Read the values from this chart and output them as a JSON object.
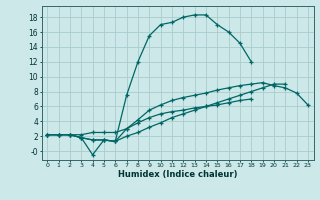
{
  "title": "",
  "xlabel": "Humidex (Indice chaleur)",
  "bg_color": "#cce8e8",
  "grid_color": "#aacccc",
  "line_color": "#006666",
  "xlim": [
    -0.5,
    23.5
  ],
  "ylim": [
    -1.2,
    19.5
  ],
  "xticks": [
    0,
    1,
    2,
    3,
    4,
    5,
    6,
    7,
    8,
    9,
    10,
    11,
    12,
    13,
    14,
    15,
    16,
    17,
    18,
    19,
    20,
    21,
    22,
    23
  ],
  "ytick_vals": [
    0,
    2,
    4,
    6,
    8,
    10,
    12,
    14,
    16,
    18
  ],
  "ytick_labels": [
    "-0",
    "2",
    "4",
    "6",
    "8",
    "10",
    "12",
    "14",
    "16",
    "18"
  ],
  "line1_x": [
    0,
    1,
    2,
    3,
    4,
    5,
    6,
    7,
    8,
    9,
    10,
    11,
    12,
    13,
    14,
    15,
    16,
    17,
    18
  ],
  "line1_y": [
    2.2,
    2.2,
    2.2,
    1.8,
    -0.5,
    1.5,
    1.3,
    7.5,
    12.0,
    15.5,
    17.0,
    17.3,
    18.0,
    18.3,
    18.3,
    17.0,
    16.0,
    14.5,
    12.0
  ],
  "line2_x": [
    0,
    1,
    2,
    3,
    4,
    5,
    6,
    7,
    8,
    9,
    10,
    11,
    12,
    13,
    14,
    15,
    16,
    17,
    18,
    19,
    20,
    21
  ],
  "line2_y": [
    2.2,
    2.2,
    2.2,
    1.8,
    1.5,
    1.5,
    1.3,
    2.0,
    2.5,
    3.2,
    3.8,
    4.5,
    5.0,
    5.5,
    6.0,
    6.5,
    7.0,
    7.5,
    8.0,
    8.5,
    9.0,
    9.0
  ],
  "line3_x": [
    0,
    1,
    2,
    3,
    4,
    5,
    6,
    7,
    8,
    9,
    10,
    11,
    12,
    13,
    14,
    15,
    16,
    17,
    18,
    19,
    20,
    21,
    22,
    23
  ],
  "line3_y": [
    2.2,
    2.2,
    2.2,
    1.8,
    1.5,
    1.5,
    1.3,
    3.0,
    4.2,
    5.5,
    6.2,
    6.8,
    7.2,
    7.5,
    7.8,
    8.2,
    8.5,
    8.8,
    9.0,
    9.2,
    8.8,
    8.5,
    7.8,
    6.2
  ],
  "line4_x": [
    0,
    1,
    2,
    3,
    4,
    5,
    6,
    7,
    8,
    9,
    10,
    11,
    12,
    13,
    14,
    15,
    16,
    17,
    18
  ],
  "line4_y": [
    2.2,
    2.2,
    2.2,
    2.2,
    2.5,
    2.5,
    2.5,
    3.0,
    3.8,
    4.5,
    5.0,
    5.3,
    5.5,
    5.8,
    6.0,
    6.2,
    6.5,
    6.8,
    7.0
  ]
}
